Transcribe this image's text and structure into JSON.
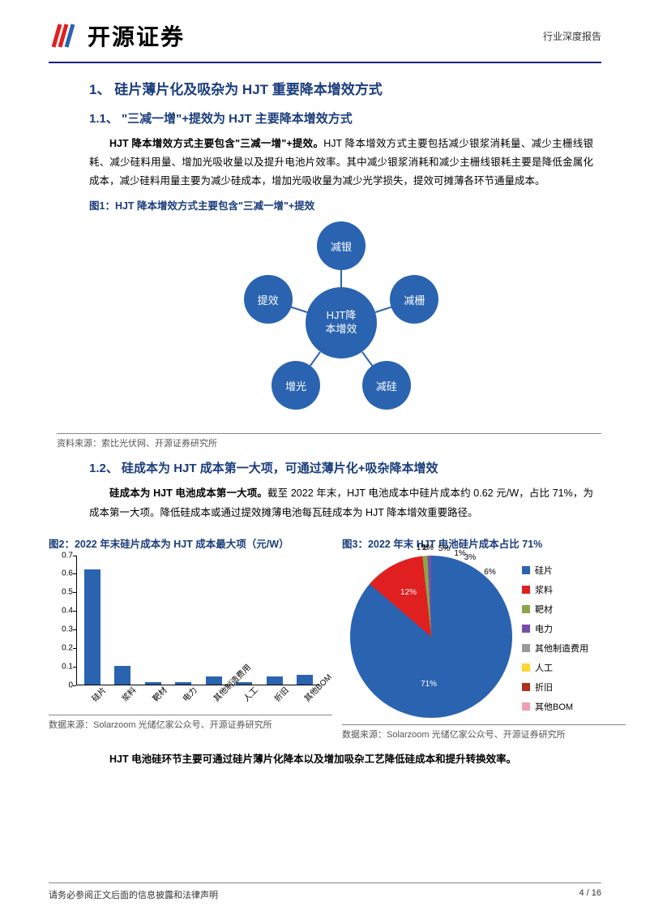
{
  "header": {
    "company": "开源证券",
    "doc_type": "行业深度报告"
  },
  "section1": {
    "num": "1、",
    "title": "硅片薄片化及吸杂为 HJT 重要降本增效方式"
  },
  "section11": {
    "num": "1.1、",
    "title": "\"三减一增\"+提效为 HJT 主要降本增效方式",
    "para_bold": "HJT 降本增效方式主要包含\"三减一增\"+提效。",
    "para_rest": "HJT 降本增效方式主要包括减少银浆消耗量、减少主栅线银耗、减少硅料用量、增加光吸收量以及提升电池片效率。其中减少银浆消耗和减少主栅线银耗主要是降低金属化成本，减少硅料用量主要为减少硅成本，增加光吸收量为减少光学损失，提效可摊薄各环节通量成本。"
  },
  "fig1": {
    "caption": "图1：HJT 降本增效方式主要包含\"三减一增\"+提效",
    "center": "HJT降\n本增效",
    "petals": [
      "减银",
      "减栅",
      "减硅",
      "增光",
      "提效"
    ],
    "source": "资料来源：索比光伏网、开源证券研究所",
    "node_color": "#2a63b0"
  },
  "section12": {
    "num": "1.2、",
    "title": "硅成本为 HJT 成本第一大项，可通过薄片化+吸杂降本增效",
    "para_bold": "硅成本为 HJT 电池成本第一大项。",
    "para_rest": "截至 2022 年末，HJT 电池成本中硅片成本约 0.62 元/W，占比 71%，为成本第一大项。降低硅成本或通过提效摊薄电池每瓦硅成本为 HJT 降本增效重要路径。"
  },
  "fig2": {
    "caption": "图2：2022 年末硅片成本为 HJT 成本最大项（元/W）",
    "type": "bar",
    "categories": [
      "硅片",
      "浆料",
      "靶材",
      "电力",
      "其他制造费用",
      "人工",
      "折旧",
      "其他BOM"
    ],
    "values": [
      0.62,
      0.1,
      0.01,
      0.01,
      0.04,
      0.01,
      0.04,
      0.05
    ],
    "bar_color": "#2a63b0",
    "ylim": [
      0,
      0.7
    ],
    "ytick_step": 0.1,
    "source": "数据来源：Solarzoom 光储亿家公众号、开源证券研究所"
  },
  "fig3": {
    "caption": "图3：2022 年末 HJT 电池硅片成本占比 71%",
    "type": "pie",
    "labels": [
      "硅片",
      "浆料",
      "靶材",
      "电力",
      "其他制造费用",
      "人工",
      "折旧",
      "其他BOM"
    ],
    "values": [
      71,
      12,
      1,
      1,
      5,
      1,
      3,
      6
    ],
    "colors": [
      "#2a63b0",
      "#e02020",
      "#8aa64b",
      "#7550a8",
      "#9a9a9a",
      "#ffd633",
      "#b03020",
      "#f0a0b0"
    ],
    "source": "数据来源：Solarzoom 光储亿家公众号、开源证券研究所"
  },
  "closing": {
    "para_bold": "HJT 电池硅环节主要可通过硅片薄片化降本以及增加吸杂工艺降低硅成本和提升转换效率。"
  },
  "footer": {
    "left": "请务必参阅正文后面的信息披露和法律声明",
    "right": "4 / 16"
  }
}
